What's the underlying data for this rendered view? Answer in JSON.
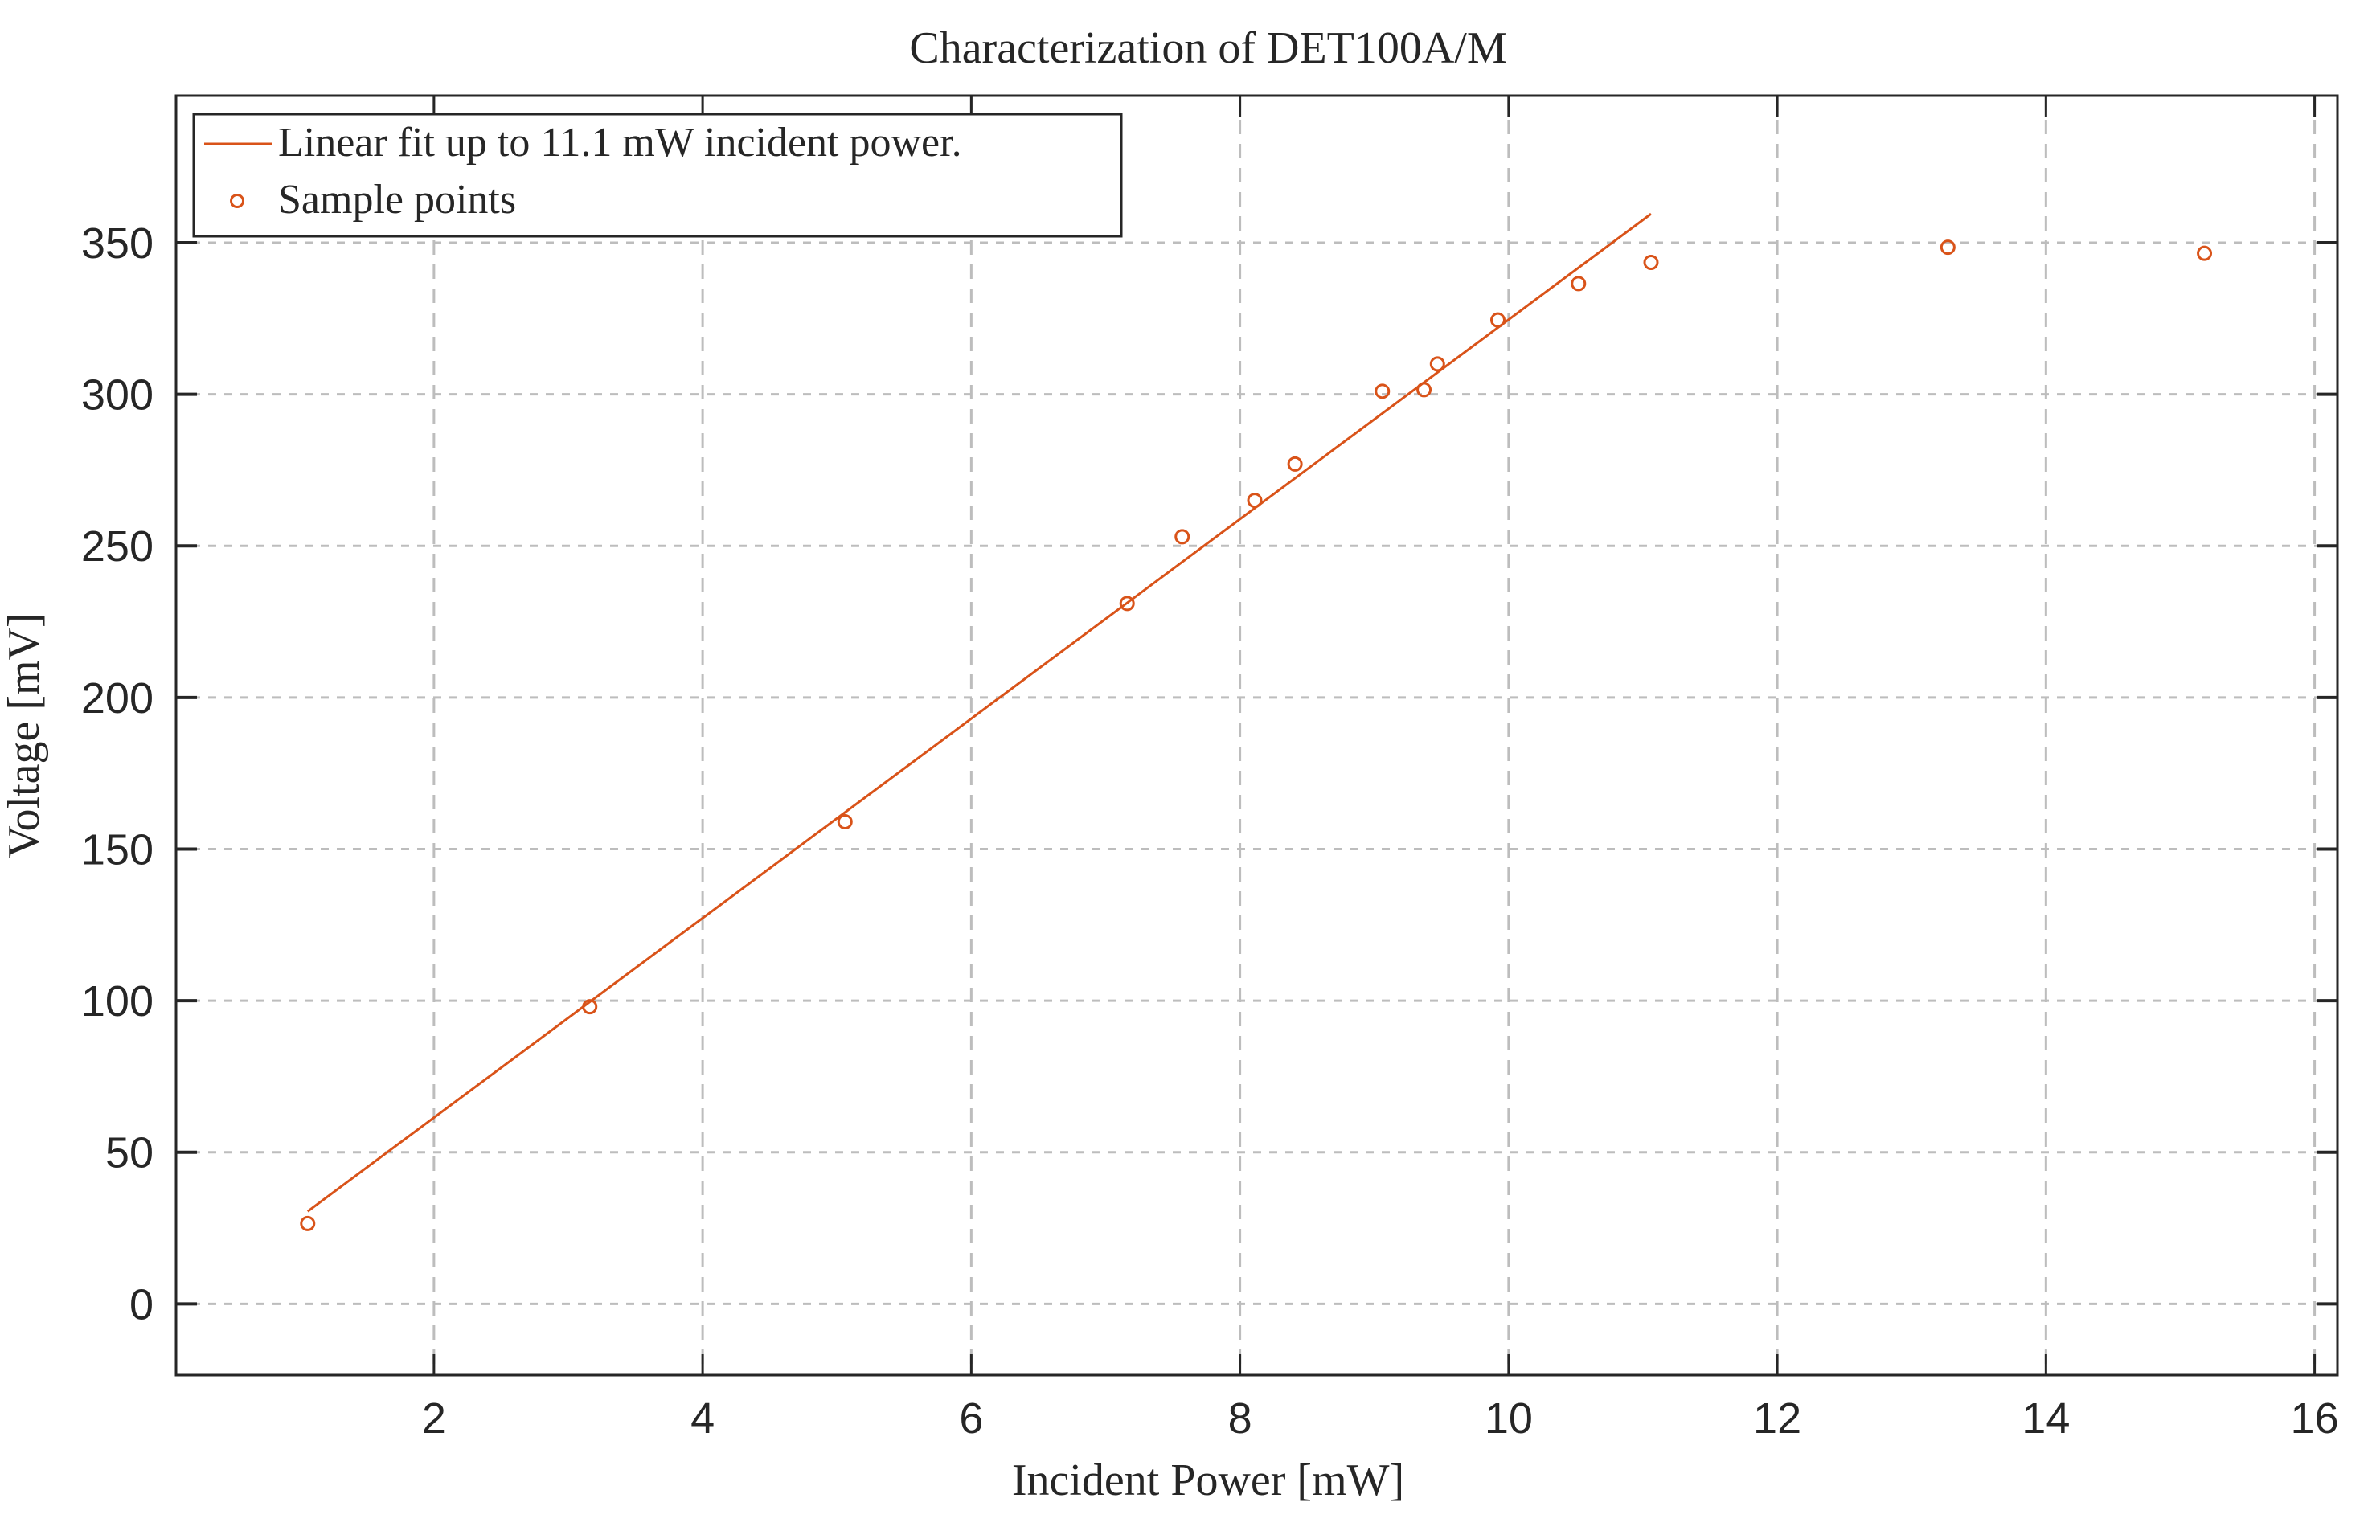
{
  "chart_data": {
    "type": "scatter",
    "title": "Characterization of DET100A/M",
    "xlabel": "Incident Power [mW]",
    "ylabel": "Voltage [mV]",
    "xlim": [
      0.08,
      16.17
    ],
    "ylim": [
      -23.5,
      398.5
    ],
    "xticks": [
      2,
      4,
      6,
      8,
      10,
      12,
      14,
      16
    ],
    "yticks": [
      0,
      50,
      100,
      150,
      200,
      250,
      300,
      350
    ],
    "grid": true,
    "legend_position": "top-left",
    "color": "#D95319",
    "series": [
      {
        "name": "Linear fit up to 11.1 mW incident power.",
        "type": "line",
        "x": [
          1.06,
          11.06
        ],
        "y": [
          30.5,
          359.5
        ]
      },
      {
        "name": "Sample points",
        "type": "scatter",
        "marker": "circle-open",
        "x": [
          1.06,
          3.16,
          5.06,
          7.16,
          7.57,
          8.11,
          8.41,
          9.06,
          9.37,
          9.47,
          9.92,
          10.52,
          11.06,
          13.27,
          15.18
        ],
        "y": [
          26.5,
          98,
          159,
          231,
          253,
          265,
          277,
          301,
          301.5,
          310,
          324.5,
          336.5,
          343.5,
          348.5,
          346.5
        ]
      }
    ]
  }
}
